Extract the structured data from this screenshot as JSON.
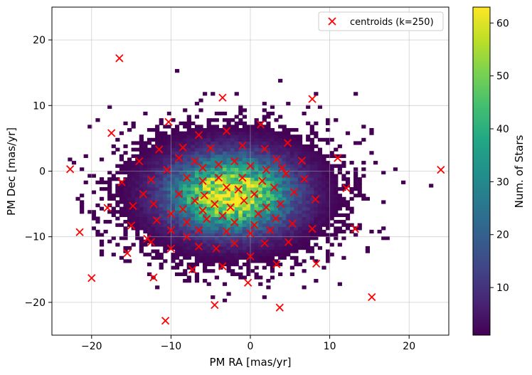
{
  "chart_data": {
    "type": "heatmap",
    "title": "",
    "xlabel": "PM RA [mas/yr]",
    "ylabel": "PM Dec [mas/yr]",
    "xlim": [
      -25,
      25
    ],
    "ylim": [
      -25,
      25
    ],
    "x_ticks": [
      -20,
      -10,
      0,
      10,
      20
    ],
    "y_ticks": [
      -20,
      -10,
      0,
      10,
      20
    ],
    "x_tick_labels": [
      "−20",
      "−10",
      "0",
      "10",
      "20"
    ],
    "y_tick_labels": [
      "−20",
      "−10",
      "0",
      "10",
      "20"
    ],
    "grid": true,
    "density": {
      "description_values": "2D histogram of star counts",
      "center": [
        -2.5,
        -3.5
      ],
      "spread": [
        6,
        4.5
      ],
      "max_count": 63
    },
    "colorbar": {
      "label": "Num. of Stars",
      "min": 1,
      "max": 63,
      "ticks": [
        10,
        20,
        30,
        40,
        50,
        60
      ],
      "colormap": "viridis"
    },
    "legend": {
      "placement": "top-right",
      "entries": [
        "centroids (k=250)"
      ]
    },
    "series": [
      {
        "name": "centroids (k=250)",
        "type": "scatter",
        "color": "#ff0000",
        "marker": "x",
        "points": [
          [
            -16.5,
            17.2
          ],
          [
            -3.5,
            11.2
          ],
          [
            7.8,
            11.0
          ],
          [
            1.3,
            7.1
          ],
          [
            -10.3,
            7.5
          ],
          [
            -17.5,
            5.8
          ],
          [
            -3.0,
            6.1
          ],
          [
            -6.5,
            5.5
          ],
          [
            4.7,
            4.3
          ],
          [
            -11.5,
            3.3
          ],
          [
            -8.5,
            3.6
          ],
          [
            -5.0,
            3.5
          ],
          [
            -1.0,
            3.9
          ],
          [
            1.8,
            3.4
          ],
          [
            11.0,
            2.0
          ],
          [
            -14.0,
            1.5
          ],
          [
            -9.0,
            2.0
          ],
          [
            -7.0,
            1.5
          ],
          [
            3.3,
            1.8
          ],
          [
            6.5,
            1.6
          ],
          [
            -22.7,
            0.3
          ],
          [
            24.0,
            0.2
          ],
          [
            -10.5,
            0.2
          ],
          [
            -16.2,
            -1.7
          ],
          [
            -12.5,
            -1.3
          ],
          [
            4.5,
            -0.4
          ],
          [
            6.8,
            -1.2
          ],
          [
            12.1,
            -2.6
          ],
          [
            -13.5,
            -3.5
          ],
          [
            -5.8,
            -3.7
          ],
          [
            -3.0,
            -2.5
          ],
          [
            -0.8,
            -4.5
          ],
          [
            5.5,
            -3.2
          ],
          [
            -14.8,
            -5.3
          ],
          [
            -12.2,
            -5.0
          ],
          [
            3.8,
            -5.0
          ],
          [
            8.2,
            -4.3
          ],
          [
            -18.0,
            -5.6
          ],
          [
            -10.0,
            -6.5
          ],
          [
            -5.5,
            -7.3
          ],
          [
            -2.0,
            -7.8
          ],
          [
            1.0,
            -6.5
          ],
          [
            3.2,
            -7.2
          ],
          [
            5.3,
            -8.0
          ],
          [
            -15.0,
            -8.3
          ],
          [
            -11.8,
            -7.5
          ],
          [
            -8.0,
            -7.8
          ],
          [
            7.8,
            -8.8
          ],
          [
            13.2,
            -8.8
          ],
          [
            -21.5,
            -9.3
          ],
          [
            -10.0,
            -9.0
          ],
          [
            -6.5,
            -9.0
          ],
          [
            -3.0,
            -9.2
          ],
          [
            0.0,
            -9.5
          ],
          [
            2.5,
            -9.0
          ],
          [
            -13.0,
            -10.3
          ],
          [
            -8.0,
            -10.0
          ],
          [
            4.8,
            -10.8
          ],
          [
            -12.5,
            -10.8
          ],
          [
            -2.0,
            -11.0
          ],
          [
            1.8,
            -11.0
          ],
          [
            -15.5,
            -12.5
          ],
          [
            -10.0,
            -11.8
          ],
          [
            -6.5,
            -11.5
          ],
          [
            -4.3,
            -11.8
          ],
          [
            0.0,
            -13.0
          ],
          [
            3.3,
            -14.2
          ],
          [
            8.3,
            -14.1
          ],
          [
            -7.3,
            -15.0
          ],
          [
            -3.5,
            -14.5
          ],
          [
            -12.2,
            -16.2
          ],
          [
            -20.0,
            -16.3
          ],
          [
            -0.3,
            -17.0
          ],
          [
            15.3,
            -19.2
          ],
          [
            -4.5,
            -20.4
          ],
          [
            3.7,
            -20.8
          ],
          [
            -10.7,
            -22.8
          ],
          [
            -6.0,
            0.5
          ],
          [
            -4.0,
            1.0
          ],
          [
            -2.0,
            1.5
          ],
          [
            0.0,
            0.8
          ],
          [
            2.0,
            0.2
          ],
          [
            -8.0,
            -1.0
          ],
          [
            -6.0,
            -1.5
          ],
          [
            -4.0,
            -1.0
          ],
          [
            -1.0,
            -1.0
          ],
          [
            1.5,
            -1.5
          ],
          [
            3.0,
            -2.5
          ],
          [
            -9.0,
            -3.5
          ],
          [
            -7.0,
            -4.5
          ],
          [
            -4.5,
            -5.0
          ],
          [
            -2.5,
            -5.5
          ],
          [
            0.5,
            -3.5
          ],
          [
            2.0,
            -5.5
          ],
          [
            -8.5,
            -5.8
          ],
          [
            -1.5,
            -2.8
          ],
          [
            -3.5,
            -6.8
          ],
          [
            0.5,
            -8.2
          ],
          [
            -6.0,
            -6.0
          ],
          [
            4.0,
            0.5
          ]
        ]
      }
    ]
  }
}
